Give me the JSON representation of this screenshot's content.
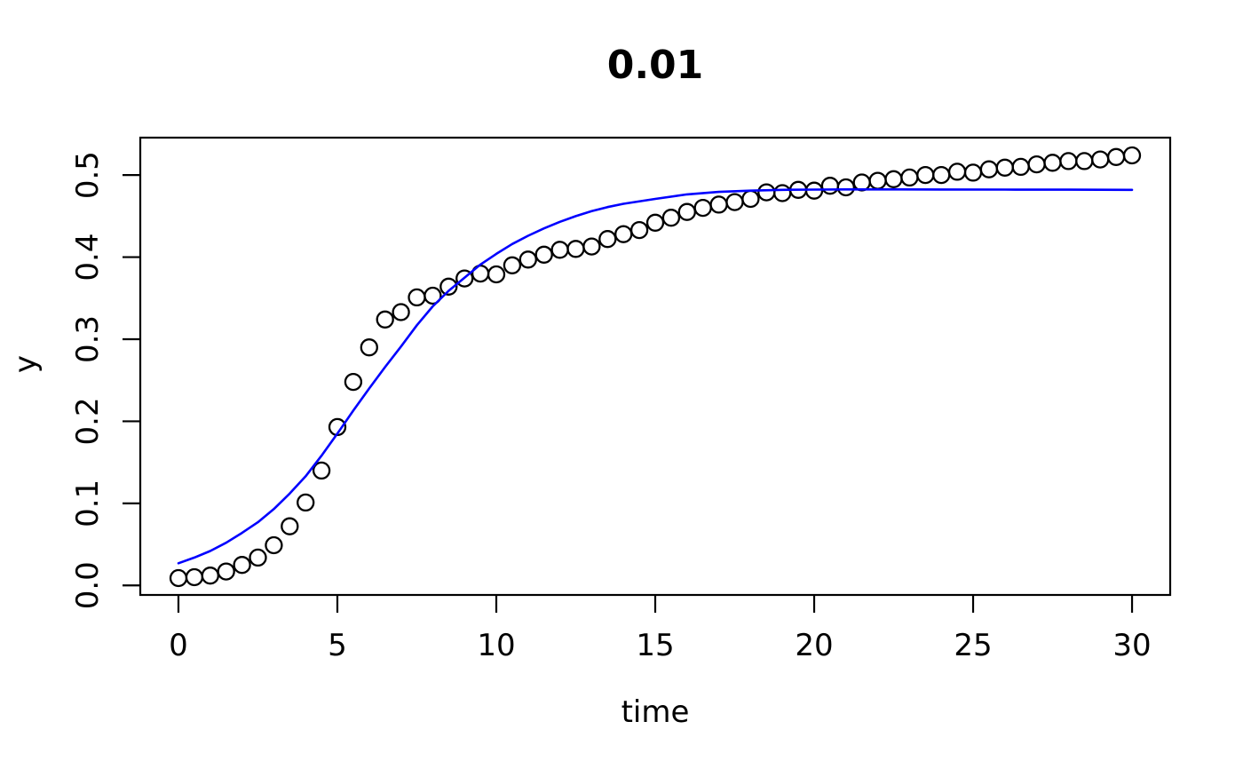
{
  "chart_data": {
    "type": "scatter",
    "title": "0.01",
    "xlabel": "time",
    "ylabel": "y",
    "xlim": [
      -1.2,
      31.2
    ],
    "ylim": [
      -0.0116,
      0.5456
    ],
    "x_ticks": [
      0,
      5,
      10,
      15,
      20,
      25,
      30
    ],
    "x_tick_labels": [
      "0",
      "5",
      "10",
      "15",
      "20",
      "25",
      "30"
    ],
    "y_ticks": [
      0.0,
      0.1,
      0.2,
      0.3,
      0.4,
      0.5
    ],
    "y_tick_labels": [
      "0.0",
      "0.1",
      "0.2",
      "0.3",
      "0.4",
      "0.5"
    ],
    "grid": "off",
    "legend": "none",
    "frame_color": "#000000",
    "series": [
      {
        "name": "observed-points",
        "type": "scatter",
        "marker": "open-circle",
        "color": "#000000",
        "x": [
          0,
          0.5,
          1,
          1.5,
          2,
          2.5,
          3,
          3.5,
          4,
          4.5,
          5,
          5.5,
          6,
          6.5,
          7,
          7.5,
          8,
          8.5,
          9,
          9.5,
          10,
          10.5,
          11,
          11.5,
          12,
          12.5,
          13,
          13.5,
          14,
          14.5,
          15,
          15.5,
          16,
          16.5,
          17,
          17.5,
          18,
          18.5,
          19,
          19.5,
          20,
          20.5,
          21,
          21.5,
          22,
          22.5,
          23,
          23.5,
          24,
          24.5,
          25,
          25.5,
          26,
          26.5,
          27,
          27.5,
          28,
          28.5,
          29,
          29.5,
          30
        ],
        "y": [
          0.009,
          0.01,
          0.012,
          0.017,
          0.025,
          0.034,
          0.049,
          0.072,
          0.101,
          0.14,
          0.193,
          0.248,
          0.29,
          0.324,
          0.333,
          0.351,
          0.353,
          0.364,
          0.374,
          0.38,
          0.379,
          0.39,
          0.397,
          0.403,
          0.409,
          0.41,
          0.413,
          0.422,
          0.428,
          0.433,
          0.442,
          0.448,
          0.455,
          0.46,
          0.464,
          0.467,
          0.471,
          0.479,
          0.478,
          0.482,
          0.481,
          0.487,
          0.485,
          0.491,
          0.493,
          0.495,
          0.497,
          0.5,
          0.5,
          0.504,
          0.503,
          0.507,
          0.509,
          0.51,
          0.513,
          0.515,
          0.517,
          0.517,
          0.519,
          0.522,
          0.524
        ]
      },
      {
        "name": "fitted-curve",
        "type": "line",
        "color": "#0000FF",
        "x": [
          0,
          0.5,
          1,
          1.5,
          2,
          2.5,
          3,
          3.5,
          4,
          4.5,
          5,
          5.5,
          6,
          6.5,
          7,
          7.5,
          8,
          8.5,
          9,
          9.5,
          10,
          10.5,
          11,
          11.5,
          12,
          12.5,
          13,
          13.5,
          14,
          15,
          16,
          17,
          18,
          19,
          20,
          21,
          22,
          24,
          26,
          28,
          30
        ],
        "y": [
          0.027,
          0.034,
          0.042,
          0.052,
          0.064,
          0.077,
          0.093,
          0.112,
          0.133,
          0.158,
          0.185,
          0.213,
          0.24,
          0.266,
          0.291,
          0.317,
          0.34,
          0.359,
          0.375,
          0.391,
          0.404,
          0.416,
          0.426,
          0.435,
          0.443,
          0.45,
          0.456,
          0.461,
          0.465,
          0.471,
          0.4765,
          0.4795,
          0.481,
          0.482,
          0.4823,
          0.4825,
          0.4825,
          0.4824,
          0.4823,
          0.4822,
          0.482
        ]
      }
    ]
  }
}
